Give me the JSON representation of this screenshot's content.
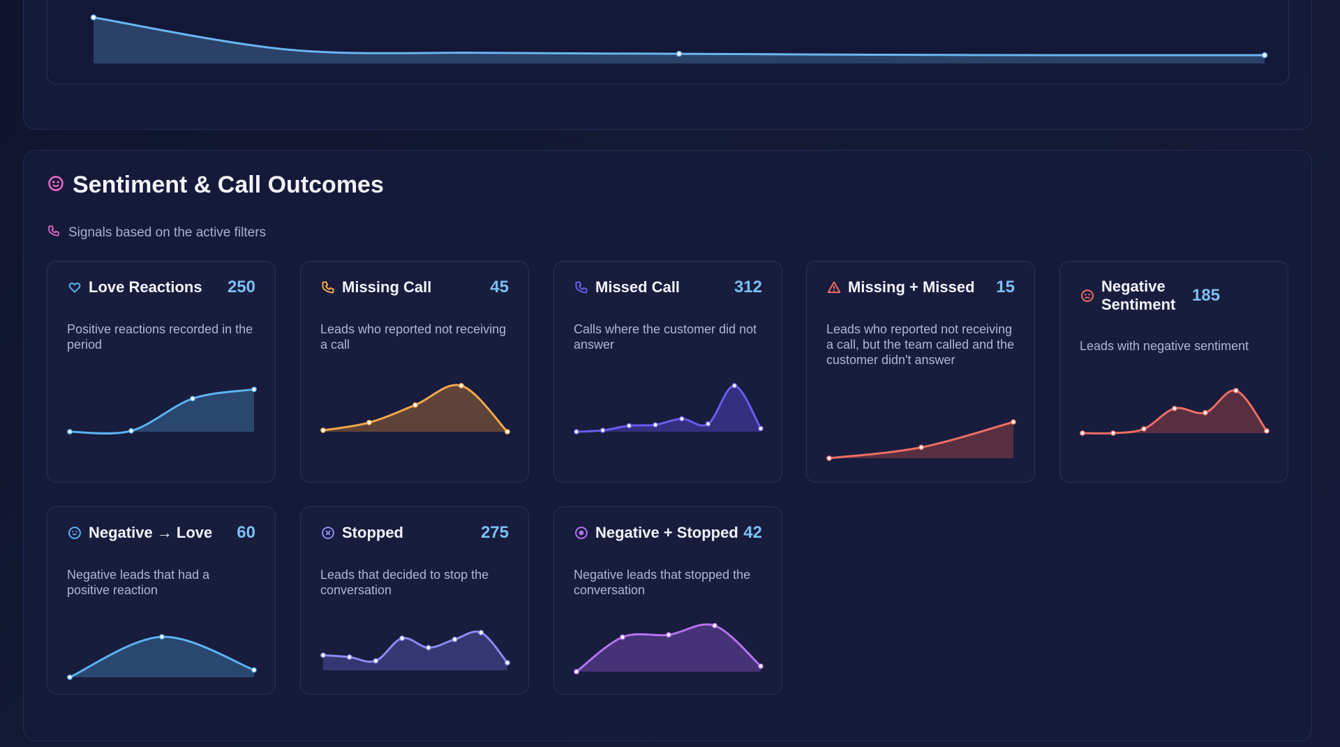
{
  "top_chart": {
    "series": [
      1.0,
      0.3,
      0.23,
      0.21,
      0.19,
      0.18,
      0.18
    ]
  },
  "section": {
    "title": "Sentiment & Call Outcomes",
    "subtitle": "Signals based on the active filters",
    "title_icon": "smile-icon",
    "subtitle_icon": "phone-icon"
  },
  "cards": [
    {
      "id": "love-reactions",
      "title": "Love Reactions",
      "value": "250",
      "desc": "Positive reactions recorded in the period",
      "icon": "heart-icon",
      "color": "#5cb3f0",
      "fill": "#3b6c9a",
      "trend": [
        0.0,
        0.02,
        0.72,
        0.92
      ]
    },
    {
      "id": "missing-call",
      "title": "Missing Call",
      "value": "45",
      "desc": "Leads who reported not receiving a call",
      "icon": "phone-icon",
      "color": "#f4a94b",
      "fill": "#9a6534",
      "trend": [
        0.03,
        0.2,
        0.58,
        1.0,
        0.0
      ]
    },
    {
      "id": "missed-call",
      "title": "Missed Call",
      "value": "312",
      "desc": "Calls where the customer did not answer",
      "icon": "phone-icon",
      "color": "#6a5cf0",
      "fill": "#4d3fb6",
      "trend": [
        0.0,
        0.03,
        0.13,
        0.15,
        0.28,
        0.17,
        1.0,
        0.07
      ]
    },
    {
      "id": "missing-missed",
      "title": "Missing + Missed",
      "value": "15",
      "desc": "Leads who reported not receiving a call, but the team called and the customer didn't answer",
      "icon": "warning-icon",
      "color": "#ee6f63",
      "fill": "#8e3f45",
      "trend": [
        0.0,
        0.3,
        1.0
      ]
    },
    {
      "id": "negative-sentiment",
      "title": "Negative Sentiment",
      "value": "185",
      "desc": "Leads with negative sentiment",
      "icon": "frown-icon",
      "color": "#ee6f63",
      "fill": "#8e3f45",
      "trend": [
        0.0,
        0.0,
        0.1,
        0.58,
        0.48,
        1.0,
        0.05
      ]
    },
    {
      "id": "negative-love",
      "title": "Negative → Love",
      "value": "60",
      "desc": "Negative leads that had a positive reaction",
      "icon": "emoji-icon",
      "color": "#5cb3f0",
      "fill": "#3b6c9a",
      "trend": [
        0.0,
        1.0,
        0.18
      ]
    },
    {
      "id": "stopped",
      "title": "Stopped",
      "value": "275",
      "desc": "Leads that decided to stop the conversation",
      "icon": "stop-circle-icon",
      "color": "#8a8cf5",
      "fill": "#4e4f9e",
      "trend": [
        0.4,
        0.35,
        0.25,
        0.85,
        0.6,
        0.82,
        1.0,
        0.2
      ]
    },
    {
      "id": "negative-stopped",
      "title": "Negative + Stopped",
      "value": "42",
      "desc": "Negative leads that stopped the conversation",
      "icon": "target-icon",
      "color": "#b673f0",
      "fill": "#6e45a8",
      "trend": [
        0.0,
        0.75,
        0.8,
        1.0,
        0.12
      ]
    }
  ]
}
